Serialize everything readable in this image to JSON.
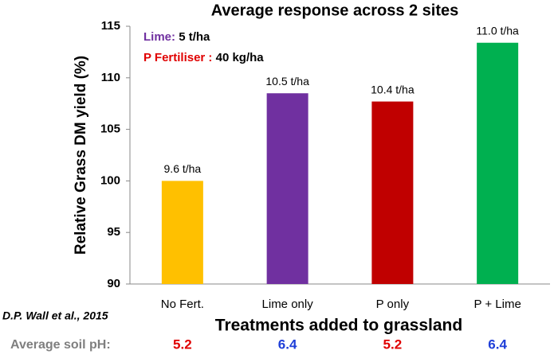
{
  "chart_data": {
    "type": "bar",
    "title": "Average response across 2 sites",
    "y_label": "Relative Grass DM yield (%)",
    "x_label": "Treatments added to grassland",
    "categories": [
      "No Fert.",
      "Lime only",
      "P only",
      "P + Lime"
    ],
    "values": [
      100,
      108.5,
      107.7,
      113.4
    ],
    "value_labels": [
      "9.6 t/ha",
      "10.5 t/ha",
      "10.4 t/ha",
      "11.0 t/ha"
    ],
    "colors": [
      "#ffc000",
      "#7030a0",
      "#c00000",
      "#00b050"
    ],
    "ylim": [
      90,
      115
    ],
    "yticks": [
      90,
      95,
      100,
      105,
      110,
      115
    ],
    "grid": false,
    "annotations": {
      "lime_label": "Lime:",
      "lime_rate": "5 t/ha",
      "p_label": "P Fertiliser :",
      "p_rate": "40 kg/ha",
      "citation": "D.P. Wall et al., 2015"
    },
    "soil_ph": {
      "label": "Average soil pH:",
      "values": [
        5.2,
        6.4,
        5.2,
        6.4
      ],
      "colors": [
        "#e00000",
        "#1f3fd8",
        "#e00000",
        "#1f3fd8"
      ]
    }
  }
}
